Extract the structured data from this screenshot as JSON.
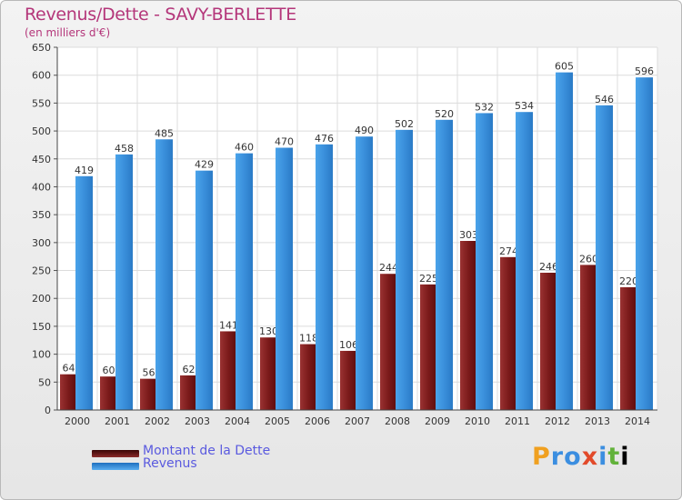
{
  "title": "Revenus/Dette - SAVY-BERLETTE",
  "subtitle": "(en milliers d'€)",
  "colors": {
    "debt": "#7a1a1a",
    "revenue": "#3a8fdb",
    "accent": "#b4367a",
    "legend_text": "#5a5adf"
  },
  "chart_data": {
    "type": "bar",
    "categories": [
      "2000",
      "2001",
      "2002",
      "2003",
      "2004",
      "2005",
      "2006",
      "2007",
      "2008",
      "2009",
      "2010",
      "2011",
      "2012",
      "2013",
      "2014"
    ],
    "series": [
      {
        "name": "Montant de la Dette",
        "values": [
          64,
          60,
          56,
          62,
          141,
          130,
          118,
          106,
          244,
          225,
          303,
          274,
          246,
          260,
          220
        ]
      },
      {
        "name": "Revenus",
        "values": [
          419,
          458,
          485,
          429,
          460,
          470,
          476,
          490,
          502,
          520,
          532,
          534,
          605,
          546,
          596
        ]
      }
    ],
    "ylim": [
      0,
      650
    ],
    "yticks": [
      0,
      50,
      100,
      150,
      200,
      250,
      300,
      350,
      400,
      450,
      500,
      550,
      600,
      650
    ],
    "grid": true,
    "legend_position": "bottom-left"
  },
  "logo_text": "Proxiti"
}
